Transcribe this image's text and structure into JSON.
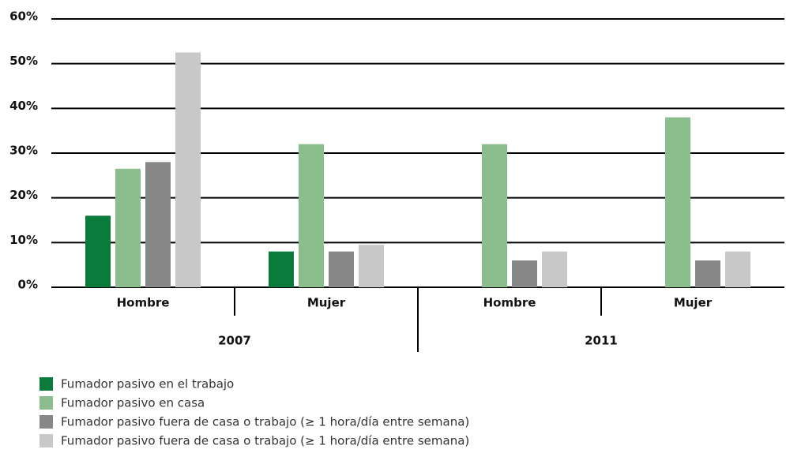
{
  "chart_data": {
    "type": "bar",
    "categories": [
      "Hombre",
      "Mujer",
      "Hombre",
      "Mujer"
    ],
    "groups": [
      "2007",
      "2011"
    ],
    "series": [
      {
        "name": "Fumador pasivo en el trabajo",
        "color": "#0a7b3a",
        "values": [
          16,
          8,
          null,
          null
        ]
      },
      {
        "name": "Fumador pasivo en casa",
        "color": "#8cbd8c",
        "values": [
          26.5,
          32,
          32,
          38
        ]
      },
      {
        "name": "Fumador pasivo fuera de casa o trabajo (≥ 1 hora/día entre semana)",
        "color": "#878787",
        "values": [
          28,
          8,
          6,
          6
        ]
      },
      {
        "name": "Fumador pasivo fuera de casa o trabajo (≥ 1 hora/día entre semana)",
        "color": "#c8c8c8",
        "values": [
          52.5,
          9.5,
          8,
          8
        ]
      }
    ],
    "ylim": [
      0,
      60
    ],
    "yticks": [
      {
        "value": 0,
        "label": "0%"
      },
      {
        "value": 10,
        "label": "10%"
      },
      {
        "value": 20,
        "label": "20%"
      },
      {
        "value": 30,
        "label": "30%"
      },
      {
        "value": 40,
        "label": "40%"
      },
      {
        "value": 50,
        "label": "50%"
      },
      {
        "value": 60,
        "label": "60%"
      }
    ],
    "grid": true
  }
}
